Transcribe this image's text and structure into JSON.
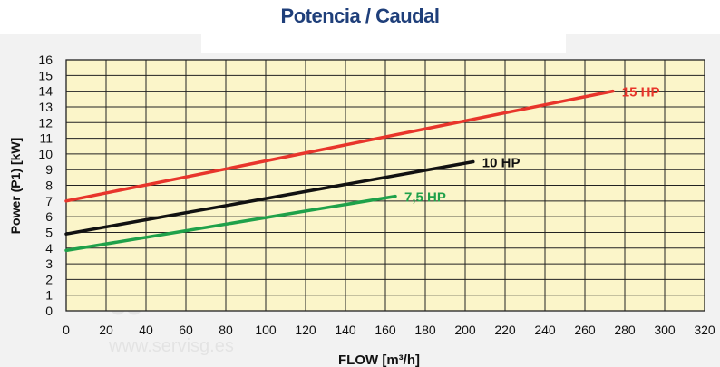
{
  "page_title": "Potencia / Caudal",
  "watermark": {
    "logo_text": "SG",
    "url_text": "www.servisg.es"
  },
  "chart_data": {
    "type": "line",
    "title": "Potencia / Caudal",
    "xlabel": "FLOW [m³/h]",
    "ylabel": "Power  (P1)  [kW]",
    "xlim": [
      0,
      320
    ],
    "ylim": [
      0,
      16
    ],
    "xticks": [
      "0",
      "20",
      "40",
      "60",
      "80",
      "100",
      "120",
      "140",
      "160",
      "180",
      "200",
      "220",
      "240",
      "260",
      "280",
      "300",
      "320"
    ],
    "yticks": [
      "0",
      "1",
      "2",
      "3",
      "4",
      "5",
      "6",
      "7",
      "8",
      "9",
      "10",
      "11",
      "12",
      "13",
      "14",
      "15",
      "16"
    ],
    "grid": true,
    "legend": "inline-labels-at-line-ends",
    "series": [
      {
        "name": "15 HP",
        "color": "#e8352b",
        "x": [
          0,
          274
        ],
        "y": [
          7.0,
          14.0
        ]
      },
      {
        "name": "10 HP",
        "color": "#111111",
        "x": [
          0,
          204
        ],
        "y": [
          4.9,
          9.5
        ]
      },
      {
        "name": "7,5 HP",
        "color": "#1fa14a",
        "x": [
          0,
          165
        ],
        "y": [
          3.85,
          7.3
        ]
      }
    ]
  }
}
